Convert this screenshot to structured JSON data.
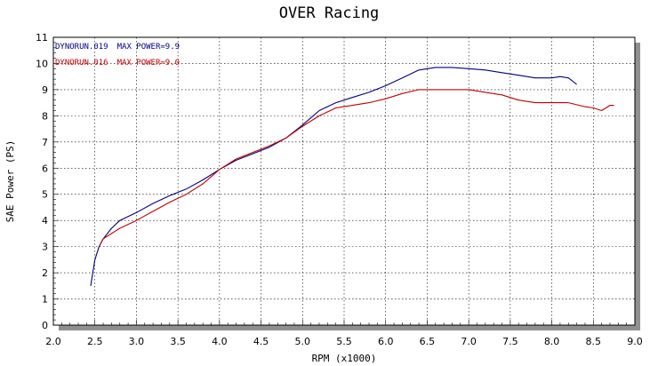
{
  "chart_data": {
    "type": "line",
    "title": "OVER Racing",
    "xlabel": "RPM (x1000)",
    "ylabel": "SAE Power (PS)",
    "xlim": [
      2.0,
      9.0
    ],
    "ylim": [
      0,
      11
    ],
    "xticks": [
      "2.0",
      "2.5",
      "3.0",
      "3.5",
      "4.0",
      "4.5",
      "5.0",
      "5.5",
      "6.0",
      "6.5",
      "7.0",
      "7.5",
      "8.0",
      "8.5",
      "9.0"
    ],
    "yticks": [
      "0",
      "1",
      "2",
      "3",
      "4",
      "5",
      "6",
      "7",
      "8",
      "9",
      "10",
      "11"
    ],
    "grid": true,
    "legend_position": "top-left",
    "series": [
      {
        "name": "DYNORUN.019",
        "max_label": "MAX POWER=9.9",
        "color": "#00007f",
        "x": [
          2.45,
          2.5,
          2.55,
          2.6,
          2.7,
          2.8,
          3.0,
          3.2,
          3.4,
          3.6,
          3.8,
          4.0,
          4.2,
          4.4,
          4.6,
          4.8,
          5.0,
          5.2,
          5.4,
          5.6,
          5.8,
          6.0,
          6.2,
          6.4,
          6.6,
          6.8,
          7.0,
          7.2,
          7.4,
          7.6,
          7.8,
          8.0,
          8.1,
          8.2,
          8.3
        ],
        "y": [
          1.5,
          2.5,
          3.0,
          3.3,
          3.7,
          4.0,
          4.3,
          4.65,
          4.95,
          5.2,
          5.55,
          5.95,
          6.3,
          6.55,
          6.8,
          7.15,
          7.65,
          8.2,
          8.5,
          8.7,
          8.9,
          9.15,
          9.45,
          9.75,
          9.85,
          9.85,
          9.8,
          9.75,
          9.65,
          9.55,
          9.45,
          9.45,
          9.5,
          9.45,
          9.2
        ]
      },
      {
        "name": "DYNORUN.016",
        "max_label": "MAX POWER=9.0",
        "color": "#bf0000",
        "x": [
          2.55,
          2.6,
          2.7,
          2.8,
          3.0,
          3.2,
          3.4,
          3.6,
          3.8,
          4.0,
          4.2,
          4.4,
          4.6,
          4.8,
          5.0,
          5.2,
          5.4,
          5.6,
          5.8,
          6.0,
          6.2,
          6.4,
          6.6,
          6.8,
          7.0,
          7.2,
          7.4,
          7.6,
          7.8,
          8.0,
          8.2,
          8.4,
          8.5,
          8.6,
          8.7,
          8.75
        ],
        "y": [
          3.0,
          3.3,
          3.5,
          3.7,
          4.0,
          4.35,
          4.7,
          5.0,
          5.4,
          5.95,
          6.35,
          6.6,
          6.85,
          7.15,
          7.6,
          8.0,
          8.3,
          8.4,
          8.5,
          8.65,
          8.85,
          9.0,
          9.0,
          9.0,
          9.0,
          8.9,
          8.8,
          8.6,
          8.5,
          8.5,
          8.5,
          8.35,
          8.3,
          8.2,
          8.4,
          8.4
        ]
      }
    ]
  }
}
